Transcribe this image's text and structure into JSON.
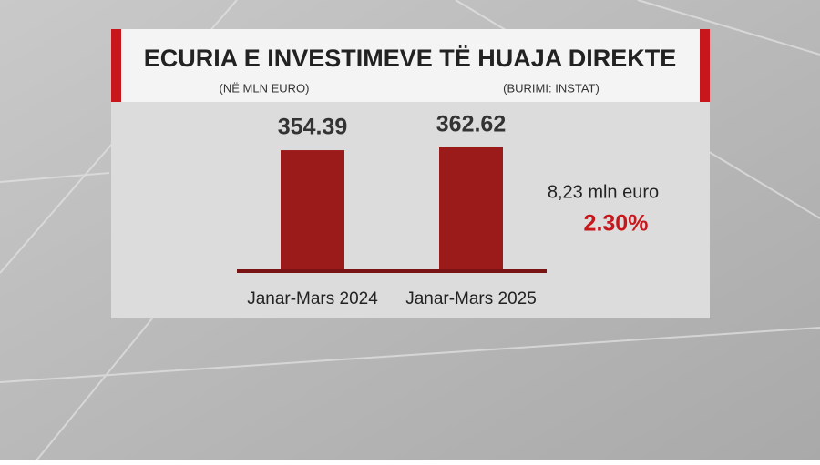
{
  "chart_data": {
    "type": "bar",
    "title": "ECURIA E INVESTIMEVE TË HUAJA DIREKTE",
    "subtitle": "(NË MLN EURO)",
    "source": "(BURIMI: INSTAT)",
    "categories": [
      "Janar-Mars 2024",
      "Janar-Mars 2025"
    ],
    "values": [
      354.39,
      362.62
    ],
    "color": "#9b1b1b",
    "annotations": [
      "8,23 mln euro",
      "2.30%"
    ]
  }
}
